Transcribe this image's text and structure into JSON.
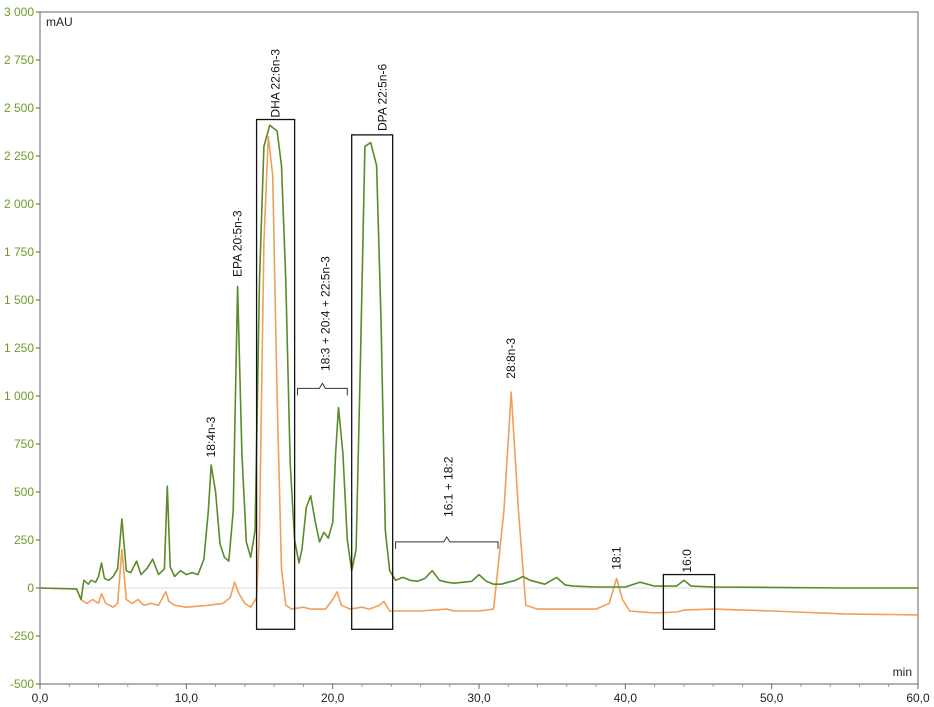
{
  "chart_data": {
    "type": "line",
    "xlabel": "min",
    "ylabel": "mAU",
    "xlim": [
      0,
      60
    ],
    "ylim": [
      -500,
      3000
    ],
    "x_ticks": [
      "0,0",
      "10,0",
      "20,0",
      "30,0",
      "40,0",
      "50,0",
      "60,0"
    ],
    "y_ticks": [
      "3 000",
      "2 750",
      "2 500",
      "2 250",
      "2 000",
      "1 750",
      "1 500",
      "1 250",
      "1 000",
      "750",
      "500",
      "250",
      "0",
      "-250",
      "-500"
    ],
    "y_tick_color": "#6e9a2c",
    "grid": false,
    "series": [
      {
        "color": "#5b8a2b",
        "points": [
          [
            0,
            0
          ],
          [
            2.5,
            -5
          ],
          [
            2.8,
            -60
          ],
          [
            3.0,
            40
          ],
          [
            3.3,
            20
          ],
          [
            3.5,
            40
          ],
          [
            3.8,
            30
          ],
          [
            4.0,
            60
          ],
          [
            4.2,
            130
          ],
          [
            4.4,
            50
          ],
          [
            4.7,
            40
          ],
          [
            5.0,
            60
          ],
          [
            5.3,
            100
          ],
          [
            5.6,
            360
          ],
          [
            5.9,
            90
          ],
          [
            6.2,
            80
          ],
          [
            6.6,
            140
          ],
          [
            6.9,
            70
          ],
          [
            7.3,
            100
          ],
          [
            7.7,
            150
          ],
          [
            8.1,
            70
          ],
          [
            8.5,
            100
          ],
          [
            8.7,
            530
          ],
          [
            8.9,
            110
          ],
          [
            9.2,
            60
          ],
          [
            9.6,
            90
          ],
          [
            10.0,
            70
          ],
          [
            10.4,
            80
          ],
          [
            10.8,
            70
          ],
          [
            11.2,
            150
          ],
          [
            11.5,
            400
          ],
          [
            11.7,
            640
          ],
          [
            12.0,
            500
          ],
          [
            12.3,
            230
          ],
          [
            12.6,
            160
          ],
          [
            12.9,
            140
          ],
          [
            13.2,
            400
          ],
          [
            13.5,
            1570
          ],
          [
            13.8,
            700
          ],
          [
            14.1,
            240
          ],
          [
            14.4,
            160
          ],
          [
            14.7,
            300
          ],
          [
            15.0,
            1600
          ],
          [
            15.3,
            2300
          ],
          [
            15.7,
            2410
          ],
          [
            16.2,
            2380
          ],
          [
            16.5,
            2200
          ],
          [
            16.8,
            1600
          ],
          [
            17.1,
            650
          ],
          [
            17.4,
            250
          ],
          [
            17.7,
            130
          ],
          [
            17.9,
            200
          ],
          [
            18.2,
            420
          ],
          [
            18.5,
            480
          ],
          [
            18.8,
            350
          ],
          [
            19.1,
            240
          ],
          [
            19.4,
            290
          ],
          [
            19.7,
            260
          ],
          [
            20.0,
            340
          ],
          [
            20.2,
            700
          ],
          [
            20.4,
            940
          ],
          [
            20.7,
            700
          ],
          [
            21.0,
            250
          ],
          [
            21.3,
            90
          ],
          [
            21.6,
            200
          ],
          [
            21.9,
            1200
          ],
          [
            22.2,
            2300
          ],
          [
            22.6,
            2320
          ],
          [
            23.0,
            2200
          ],
          [
            23.3,
            1400
          ],
          [
            23.6,
            300
          ],
          [
            23.9,
            90
          ],
          [
            24.3,
            40
          ],
          [
            24.8,
            55
          ],
          [
            25.3,
            40
          ],
          [
            25.8,
            35
          ],
          [
            26.3,
            50
          ],
          [
            26.8,
            90
          ],
          [
            27.3,
            40
          ],
          [
            27.8,
            30
          ],
          [
            28.3,
            25
          ],
          [
            29.5,
            35
          ],
          [
            30.0,
            70
          ],
          [
            30.5,
            35
          ],
          [
            31.0,
            20
          ],
          [
            31.5,
            20
          ],
          [
            32.0,
            30
          ],
          [
            32.5,
            40
          ],
          [
            33.0,
            60
          ],
          [
            33.5,
            40
          ],
          [
            34.5,
            20
          ],
          [
            35.3,
            55
          ],
          [
            35.9,
            15
          ],
          [
            36.5,
            10
          ],
          [
            38.0,
            5
          ],
          [
            40.0,
            5
          ],
          [
            41.0,
            30
          ],
          [
            42.0,
            10
          ],
          [
            43.5,
            10
          ],
          [
            44.0,
            40
          ],
          [
            44.5,
            10
          ],
          [
            46.0,
            5
          ],
          [
            50.0,
            3
          ],
          [
            55.0,
            0
          ],
          [
            60.0,
            0
          ]
        ]
      },
      {
        "color": "#f0a05a",
        "points": [
          [
            0,
            0
          ],
          [
            2.5,
            -5
          ],
          [
            2.8,
            -60
          ],
          [
            3.2,
            -80
          ],
          [
            3.6,
            -60
          ],
          [
            4.0,
            -80
          ],
          [
            4.2,
            -30
          ],
          [
            4.5,
            -80
          ],
          [
            5.0,
            -100
          ],
          [
            5.3,
            -80
          ],
          [
            5.6,
            200
          ],
          [
            5.9,
            -60
          ],
          [
            6.3,
            -80
          ],
          [
            6.7,
            -60
          ],
          [
            7.1,
            -90
          ],
          [
            7.6,
            -80
          ],
          [
            8.1,
            -90
          ],
          [
            8.6,
            -20
          ],
          [
            8.8,
            -70
          ],
          [
            9.2,
            -90
          ],
          [
            10.0,
            -100
          ],
          [
            11.5,
            -90
          ],
          [
            12.5,
            -80
          ],
          [
            13.0,
            -50
          ],
          [
            13.3,
            30
          ],
          [
            13.6,
            -30
          ],
          [
            14.0,
            -80
          ],
          [
            14.4,
            -100
          ],
          [
            14.8,
            -50
          ],
          [
            15.0,
            300
          ],
          [
            15.3,
            1800
          ],
          [
            15.6,
            2350
          ],
          [
            15.9,
            2150
          ],
          [
            16.2,
            1000
          ],
          [
            16.5,
            100
          ],
          [
            16.8,
            -90
          ],
          [
            17.2,
            -110
          ],
          [
            18.0,
            -100
          ],
          [
            18.5,
            -110
          ],
          [
            19.5,
            -110
          ],
          [
            20.0,
            -60
          ],
          [
            20.3,
            -20
          ],
          [
            20.6,
            -90
          ],
          [
            21.2,
            -110
          ],
          [
            22.0,
            -100
          ],
          [
            22.5,
            -110
          ],
          [
            23.2,
            -90
          ],
          [
            23.5,
            -70
          ],
          [
            23.9,
            -120
          ],
          [
            26.0,
            -120
          ],
          [
            27.8,
            -110
          ],
          [
            28.3,
            -120
          ],
          [
            30.0,
            -120
          ],
          [
            31.0,
            -110
          ],
          [
            31.7,
            400
          ],
          [
            32.2,
            1020
          ],
          [
            32.7,
            400
          ],
          [
            33.2,
            -90
          ],
          [
            34.0,
            -110
          ],
          [
            38.0,
            -110
          ],
          [
            38.9,
            -80
          ],
          [
            39.4,
            50
          ],
          [
            39.8,
            -60
          ],
          [
            40.3,
            -120
          ],
          [
            42.0,
            -130
          ],
          [
            43.5,
            -125
          ],
          [
            44.0,
            -115
          ],
          [
            46.0,
            -110
          ],
          [
            50.0,
            -120
          ],
          [
            55.0,
            -135
          ],
          [
            60.0,
            -140
          ]
        ]
      }
    ],
    "annotations": [
      {
        "text": "18:4n-3",
        "x": 11.7,
        "y": 680
      },
      {
        "text": "EPA 20:5n-3",
        "x": 13.5,
        "y": 1620
      },
      {
        "text": "DHA 22:6n-3",
        "x": 16.1,
        "y": 2450
      },
      {
        "text": "18:3 + 20:4 + 22:5n-3",
        "x": 19.5,
        "y": 1130
      },
      {
        "text": "DPA 22:5n-6",
        "x": 23.4,
        "y": 2380
      },
      {
        "text": "16:1 + 18:2",
        "x": 27.9,
        "y": 370
      },
      {
        "text": "28:8n-3",
        "x": 32.2,
        "y": 1090
      },
      {
        "text": "18:1",
        "x": 39.4,
        "y": 95
      },
      {
        "text": "16:0",
        "x": 44.2,
        "y": 80
      }
    ],
    "boxes": [
      {
        "x0": 14.8,
        "x1": 17.4,
        "y0": -215,
        "y1": 2440
      },
      {
        "x0": 21.3,
        "x1": 24.1,
        "y0": -215,
        "y1": 2360
      },
      {
        "x0": 42.6,
        "x1": 46.1,
        "y0": -215,
        "y1": 70
      }
    ],
    "brackets": [
      {
        "x0": 17.6,
        "x1": 21.0,
        "y": 1040,
        "label_index": 3
      },
      {
        "x0": 24.3,
        "x1": 31.3,
        "y": 240,
        "label_index": 5
      }
    ]
  }
}
